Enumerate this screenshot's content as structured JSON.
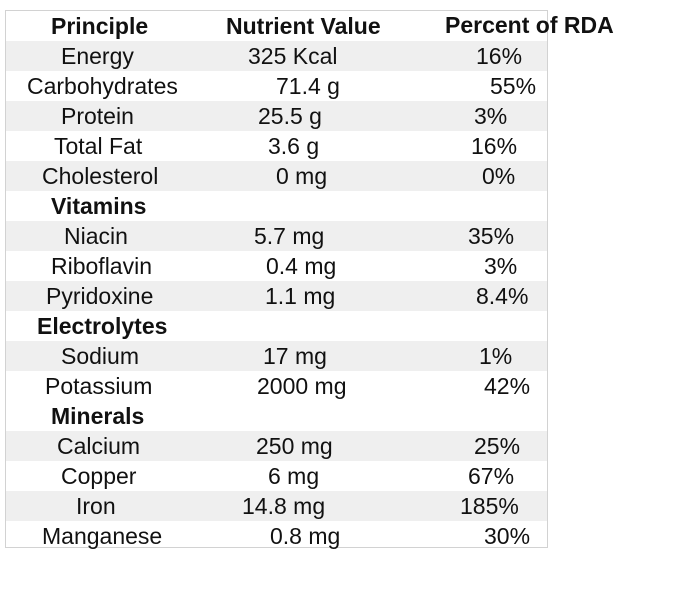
{
  "header": {
    "principle": "Principle",
    "nutrient_value": "Nutrient Value",
    "percent_rda": "Percent of RDA"
  },
  "rows": [
    {
      "type": "item",
      "principle": "Energy",
      "value": "325 Kcal",
      "rda": "16%"
    },
    {
      "type": "item",
      "principle": "Carbohydrates",
      "value": "71.4 g",
      "rda": "55%"
    },
    {
      "type": "item",
      "principle": "Protein",
      "value": "25.5 g",
      "rda": "3%"
    },
    {
      "type": "item",
      "principle": "Total Fat",
      "value": "3.6 g",
      "rda": "16%"
    },
    {
      "type": "item",
      "principle": "Cholesterol",
      "value": "0 mg",
      "rda": "0%"
    },
    {
      "type": "section",
      "principle": "Vitamins",
      "value": "",
      "rda": ""
    },
    {
      "type": "item",
      "principle": "Niacin",
      "value": "5.7 mg",
      "rda": "35%"
    },
    {
      "type": "item",
      "principle": "Riboflavin",
      "value": "0.4 mg",
      "rda": "3%"
    },
    {
      "type": "item",
      "principle": "Pyridoxine",
      "value": "1.1 mg",
      "rda": "8.4%"
    },
    {
      "type": "section",
      "principle": "Electrolytes",
      "value": "",
      "rda": ""
    },
    {
      "type": "item",
      "principle": "Sodium",
      "value": "17 mg",
      "rda": "1%"
    },
    {
      "type": "item",
      "principle": "Potassium",
      "value": "2000 mg",
      "rda": "42%"
    },
    {
      "type": "section",
      "principle": "Minerals",
      "value": "",
      "rda": ""
    },
    {
      "type": "item",
      "principle": "Calcium",
      "value": "250 mg",
      "rda": "25%"
    },
    {
      "type": "item",
      "principle": "Copper",
      "value": "6 mg",
      "rda": "67%"
    },
    {
      "type": "item",
      "principle": "Iron",
      "value": "14.8 mg",
      "rda": "185%"
    },
    {
      "type": "item",
      "principle": "Manganese",
      "value": "0.8 mg",
      "rda": "30%"
    }
  ]
}
